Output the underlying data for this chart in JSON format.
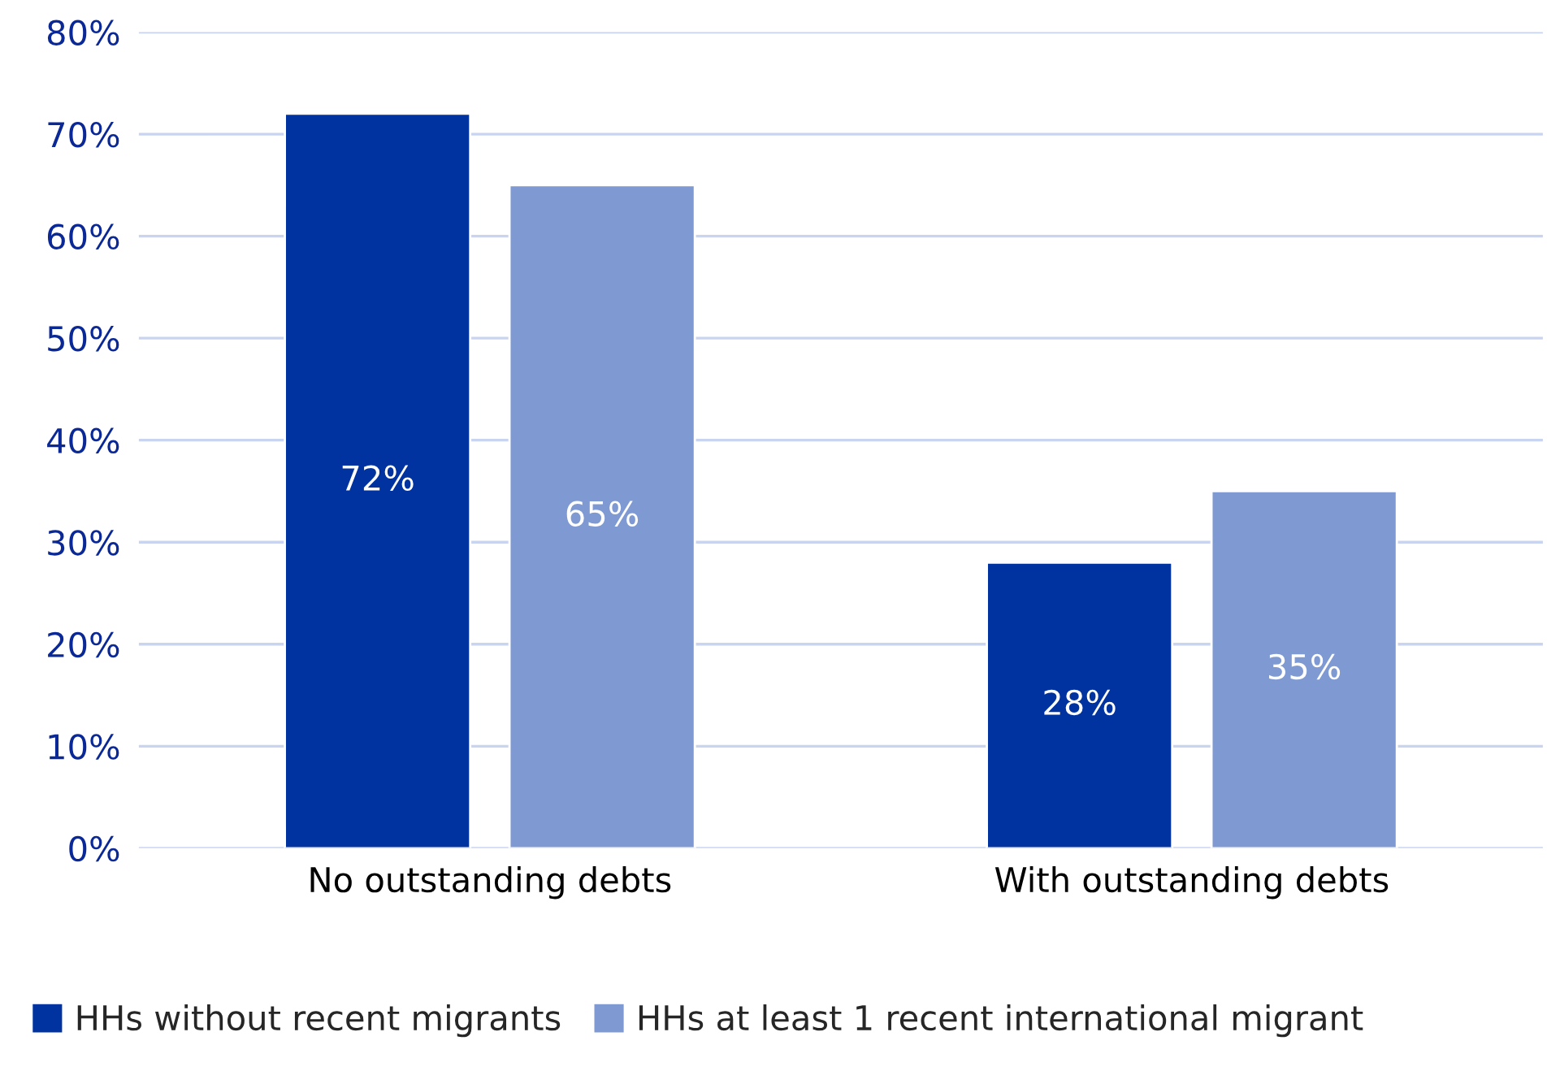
{
  "chart_data": {
    "type": "bar",
    "categories": [
      "No outstanding debts",
      "With outstanding debts"
    ],
    "series": [
      {
        "name": "HHs without recent migrants",
        "color": "#0033a0",
        "values": [
          72,
          28
        ],
        "value_labels": [
          "72%",
          "28%"
        ]
      },
      {
        "name": "HHs at least 1 recent international migrant",
        "color": "#7f9ad2",
        "values": [
          65,
          35
        ],
        "value_labels": [
          "65%",
          "35%"
        ]
      }
    ],
    "ylim": [
      0,
      80
    ],
    "yticks": [
      {
        "value": 0,
        "label": "0%"
      },
      {
        "value": 10,
        "label": "10%"
      },
      {
        "value": 20,
        "label": "20%"
      },
      {
        "value": 30,
        "label": "30%"
      },
      {
        "value": 40,
        "label": "40%"
      },
      {
        "value": 50,
        "label": "50%"
      },
      {
        "value": 60,
        "label": "60%"
      },
      {
        "value": 70,
        "label": "70%"
      },
      {
        "value": 80,
        "label": "80%"
      }
    ],
    "grid": "y",
    "legend": "bottom"
  }
}
